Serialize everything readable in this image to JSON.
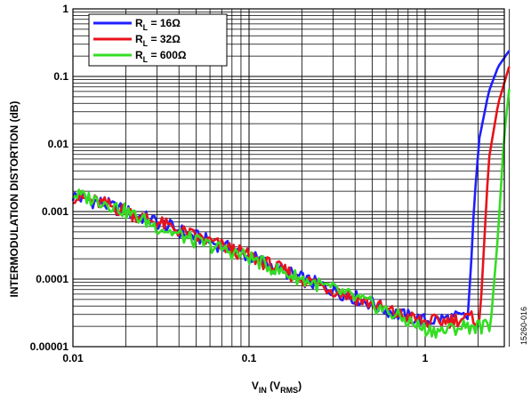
{
  "chart_data": {
    "type": "line",
    "xscale": "log",
    "yscale": "log",
    "xlim": [
      0.01,
      3.0
    ],
    "ylim": [
      1e-05,
      1
    ],
    "x_ticks": [
      "0.01",
      "0.1",
      "1"
    ],
    "y_ticks": [
      "0.00001",
      "0.0001",
      "0.001",
      "0.01",
      "0.1",
      "1"
    ],
    "xlabel_main": "V",
    "xlabel_sub": "IN",
    "xlabel_paren_open": " (V",
    "xlabel_paren_sub": "RMS",
    "xlabel_paren_close": ")",
    "ylabel": "INTERMODULATION DISTORTION (dB)",
    "grid": true,
    "legend_position": "top-left",
    "figure_id": "15260-016",
    "series": [
      {
        "name": "RL = 16Ω",
        "legend_main": "R",
        "legend_sub": "L",
        "legend_rest": " = 16Ω",
        "color": "#1f1fff",
        "x": [
          0.01,
          0.015,
          0.02,
          0.03,
          0.05,
          0.07,
          0.1,
          0.15,
          0.2,
          0.3,
          0.5,
          0.7,
          1.0,
          1.3,
          1.6,
          1.75,
          2.0,
          2.3,
          2.6,
          3.0
        ],
        "y": [
          0.0017,
          0.0013,
          0.001,
          0.0007,
          0.00042,
          0.00031,
          0.00022,
          0.00014,
          0.0001,
          7e-05,
          4.3e-05,
          3e-05,
          2.4e-05,
          2.6e-05,
          2.7e-05,
          2.7e-05,
          0.01,
          0.06,
          0.14,
          0.24
        ]
      },
      {
        "name": "RL = 32Ω",
        "legend_main": "R",
        "legend_sub": "L",
        "legend_rest": " = 32Ω",
        "color": "#e8121a",
        "x": [
          0.01,
          0.015,
          0.02,
          0.03,
          0.05,
          0.07,
          0.1,
          0.15,
          0.2,
          0.3,
          0.5,
          0.7,
          1.0,
          1.3,
          1.6,
          1.9,
          2.05,
          2.3,
          2.6,
          3.0
        ],
        "y": [
          0.0017,
          0.0013,
          0.001,
          0.0007,
          0.00042,
          0.00031,
          0.00022,
          0.00014,
          0.0001,
          7e-05,
          4.3e-05,
          3e-05,
          2.3e-05,
          2.4e-05,
          2.6e-05,
          2.6e-05,
          2.7e-05,
          0.006,
          0.04,
          0.14
        ]
      },
      {
        "name": "RL = 600Ω",
        "legend_main": "R",
        "legend_sub": "L",
        "legend_rest": " = 600Ω",
        "color": "#33dd22",
        "x": [
          0.01,
          0.015,
          0.02,
          0.03,
          0.05,
          0.07,
          0.1,
          0.15,
          0.2,
          0.3,
          0.5,
          0.7,
          1.0,
          1.3,
          1.6,
          2.0,
          2.35,
          2.6,
          2.8,
          3.0
        ],
        "y": [
          0.0018,
          0.0014,
          0.001,
          0.0006,
          0.00036,
          0.00028,
          0.00021,
          0.00013,
          0.0001,
          7e-05,
          4.2e-05,
          2.8e-05,
          1.8e-05,
          1.7e-05,
          2e-05,
          2e-05,
          2e-05,
          0.0005,
          0.012,
          0.065
        ]
      }
    ]
  }
}
